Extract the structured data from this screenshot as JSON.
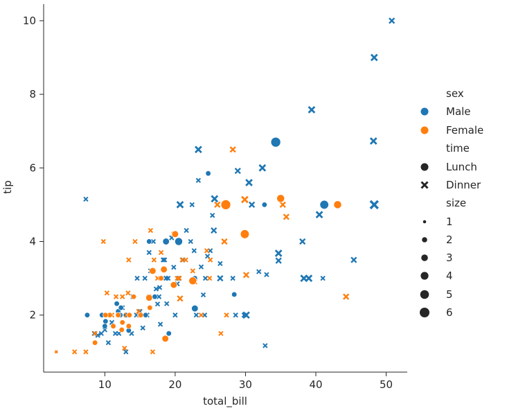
{
  "chart_data": {
    "type": "scatter",
    "title": "",
    "xlabel": "total_bill",
    "ylabel": "tip",
    "xlim": [
      1.3,
      53.0
    ],
    "ylim": [
      0.45,
      10.45
    ],
    "xticks": [
      10,
      20,
      30,
      40,
      50
    ],
    "yticks": [
      2,
      4,
      6,
      8,
      10
    ],
    "grid": false,
    "legend_position": "right",
    "colors": {
      "Male": "#1f77b4",
      "Female": "#ff7f0e"
    },
    "legend": {
      "hue_title": "sex",
      "hue_entries": [
        "Male",
        "Female"
      ],
      "style_title": "time",
      "style_entries": [
        {
          "label": "Lunch",
          "marker": "circle"
        },
        {
          "label": "Dinner",
          "marker": "x"
        }
      ],
      "size_title": "size",
      "size_entries": [
        "1",
        "2",
        "3",
        "4",
        "5",
        "6"
      ]
    },
    "series": [
      {
        "sex": "Male",
        "time": "Dinner",
        "points": [
          [
            50.8,
            10.0,
            3
          ],
          [
            48.3,
            9.0,
            4
          ],
          [
            39.4,
            7.58,
            4
          ],
          [
            48.2,
            6.73,
            4
          ],
          [
            23.3,
            6.5,
            4
          ],
          [
            32.4,
            6.0,
            4
          ],
          [
            28.9,
            5.92,
            3
          ],
          [
            30.5,
            5.6,
            4
          ],
          [
            48.3,
            5.0,
            6
          ],
          [
            20.7,
            5.0,
            4
          ],
          [
            22.4,
            5.0,
            2
          ],
          [
            30.9,
            5.0,
            3
          ],
          [
            25.6,
            5.16,
            4
          ],
          [
            23.3,
            5.66,
            2
          ],
          [
            7.3,
            5.15,
            2
          ],
          [
            34.7,
            3.68,
            4
          ],
          [
            34.7,
            3.48,
            3
          ],
          [
            40.5,
            4.73,
            4
          ],
          [
            45.4,
            3.5,
            3
          ],
          [
            38.3,
            3.0,
            4
          ],
          [
            39.0,
            3.0,
            4
          ],
          [
            41.0,
            3.0,
            2
          ],
          [
            38.1,
            4.0,
            3
          ],
          [
            30.1,
            2.0,
            4
          ],
          [
            29.8,
            2.0,
            2
          ],
          [
            32.8,
            1.17,
            2
          ],
          [
            28.2,
            3.0,
            2
          ],
          [
            28.6,
            2.0,
            2
          ],
          [
            33.0,
            3.1,
            2
          ],
          [
            31.9,
            3.18,
            2
          ],
          [
            26.4,
            3.0,
            3
          ],
          [
            26.4,
            3.4,
            2
          ],
          [
            24.6,
            3.6,
            2
          ],
          [
            24.3,
            3.0,
            2
          ],
          [
            25.0,
            3.75,
            2
          ],
          [
            25.5,
            4.3,
            3
          ],
          [
            25.3,
            4.71,
            2
          ],
          [
            23.7,
            3.31,
            2
          ],
          [
            22.8,
            3.0,
            2
          ],
          [
            21.1,
            3.5,
            2
          ],
          [
            20.5,
            3.0,
            2
          ],
          [
            19.8,
            3.3,
            2
          ],
          [
            18.7,
            3.0,
            2
          ],
          [
            18.3,
            3.5,
            2
          ],
          [
            17.8,
            2.75,
            2
          ],
          [
            17.5,
            2.3,
            2
          ],
          [
            17.3,
            2.71,
            2
          ],
          [
            16.5,
            3.2,
            2
          ],
          [
            16.0,
            2.0,
            2
          ],
          [
            15.5,
            2.0,
            2
          ],
          [
            15.0,
            2.1,
            2
          ],
          [
            14.5,
            2.0,
            2
          ],
          [
            14.0,
            2.5,
            2
          ],
          [
            13.4,
            2.0,
            2
          ],
          [
            13.0,
            2.0,
            2
          ],
          [
            12.5,
            2.2,
            2
          ],
          [
            12.0,
            1.5,
            2
          ],
          [
            11.5,
            1.5,
            2
          ],
          [
            11.0,
            1.8,
            2
          ],
          [
            10.5,
            1.25,
            2
          ],
          [
            10.0,
            1.6,
            2
          ],
          [
            9.5,
            1.5,
            2
          ],
          [
            9.0,
            1.45,
            2
          ],
          [
            8.5,
            1.5,
            2
          ],
          [
            13.0,
            1.0,
            2
          ],
          [
            14.6,
            3.0,
            2
          ],
          [
            15.7,
            3.0,
            2
          ],
          [
            16.9,
            4.0,
            2
          ],
          [
            18.5,
            3.5,
            2
          ],
          [
            19.5,
            4.1,
            2
          ],
          [
            22.2,
            4.0,
            2
          ],
          [
            21.6,
            4.3,
            2
          ],
          [
            23.0,
            2.0,
            2
          ],
          [
            24.2,
            2.0,
            2
          ],
          [
            24.0,
            2.55,
            2
          ],
          [
            20.0,
            2.0,
            2
          ],
          [
            18.8,
            2.31,
            2
          ],
          [
            17.9,
            1.75,
            2
          ],
          [
            15.4,
            1.65,
            2
          ],
          [
            13.8,
            1.5,
            2
          ],
          [
            19.0,
            3.0,
            2
          ],
          [
            20.3,
            2.85,
            2
          ],
          [
            22.7,
            3.75,
            2
          ],
          [
            16.3,
            3.7,
            2
          ],
          [
            17.7,
            2.5,
            2
          ]
        ]
      },
      {
        "sex": "Male",
        "time": "Lunch",
        "points": [
          [
            34.3,
            6.7,
            6
          ],
          [
            41.2,
            5.0,
            5
          ],
          [
            24.7,
            5.85,
            2
          ],
          [
            32.7,
            5.0,
            2
          ],
          [
            20.5,
            4.0,
            4
          ],
          [
            18.7,
            4.0,
            3
          ],
          [
            16.3,
            4.0,
            2
          ],
          [
            28.4,
            2.56,
            2
          ],
          [
            22.8,
            2.18,
            3
          ],
          [
            22.8,
            3.0,
            2
          ],
          [
            15.0,
            2.0,
            2
          ],
          [
            13.4,
            1.58,
            2
          ],
          [
            11.7,
            2.31,
            2
          ],
          [
            11.9,
            2.1,
            2
          ],
          [
            10.1,
            1.83,
            2
          ],
          [
            10.0,
            1.7,
            2
          ],
          [
            7.5,
            2.0,
            2
          ],
          [
            9.6,
            2.0,
            2
          ],
          [
            19.1,
            1.5,
            2
          ],
          [
            17.1,
            2.5,
            2
          ],
          [
            15.8,
            2.0,
            2
          ],
          [
            12.2,
            2.0,
            2
          ],
          [
            13.0,
            2.0,
            2
          ],
          [
            12.3,
            2.2,
            2
          ]
        ]
      },
      {
        "sex": "Female",
        "time": "Dinner",
        "points": [
          [
            28.2,
            6.5,
            3
          ],
          [
            35.3,
            5.0,
            3
          ],
          [
            35.8,
            4.67,
            3
          ],
          [
            29.9,
            5.14,
            4
          ],
          [
            30.1,
            3.09,
            3
          ],
          [
            27.0,
            4.0,
            3
          ],
          [
            27.3,
            2.0,
            2
          ],
          [
            26.5,
            1.5,
            2
          ],
          [
            44.3,
            2.5,
            3
          ],
          [
            25.0,
            3.5,
            2
          ],
          [
            24.9,
            3.0,
            2
          ],
          [
            21.0,
            3.5,
            2
          ],
          [
            20.7,
            2.45,
            3
          ],
          [
            20.3,
            3.0,
            2
          ],
          [
            17.5,
            3.0,
            2
          ],
          [
            17.0,
            3.5,
            2
          ],
          [
            16.5,
            4.3,
            2
          ],
          [
            16.3,
            2.5,
            2
          ],
          [
            15.0,
            2.0,
            2
          ],
          [
            14.3,
            4.0,
            2
          ],
          [
            13.4,
            3.5,
            2
          ],
          [
            13.1,
            2.0,
            2
          ],
          [
            12.5,
            2.5,
            2
          ],
          [
            11.6,
            2.5,
            2
          ],
          [
            10.3,
            2.6,
            2
          ],
          [
            9.8,
            4.0,
            2
          ],
          [
            8.6,
            1.5,
            2
          ],
          [
            7.3,
            1.0,
            2
          ],
          [
            5.7,
            1.0,
            2
          ],
          [
            3.1,
            1.0,
            1
          ],
          [
            16.8,
            1.0,
            2
          ],
          [
            18.0,
            3.7,
            2
          ],
          [
            19.8,
            4.2,
            2
          ],
          [
            22.8,
            2.9,
            2
          ],
          [
            26.0,
            5.0,
            3
          ],
          [
            11.0,
            2.0,
            2
          ],
          [
            12.8,
            1.1,
            2
          ],
          [
            13.3,
            2.6,
            2
          ],
          [
            14.8,
            2.1,
            2
          ],
          [
            20.6,
            3.0,
            2
          ],
          [
            21.5,
            3.5,
            2
          ],
          [
            22.5,
            3.2,
            2
          ],
          [
            24.5,
            3.75,
            2
          ],
          [
            23.7,
            2.0,
            2
          ]
        ]
      },
      {
        "sex": "Female",
        "time": "Lunch",
        "points": [
          [
            27.2,
            5.0,
            6
          ],
          [
            43.1,
            5.0,
            4
          ],
          [
            29.9,
            4.2,
            5
          ],
          [
            35.0,
            5.17,
            4
          ],
          [
            22.5,
            2.93,
            4
          ],
          [
            20.0,
            4.2,
            3
          ],
          [
            19.8,
            2.82,
            3
          ],
          [
            18.4,
            3.24,
            3
          ],
          [
            16.8,
            3.2,
            3
          ],
          [
            16.3,
            2.47,
            3
          ],
          [
            18.6,
            1.36,
            3
          ],
          [
            15.1,
            2.0,
            2
          ],
          [
            13.4,
            1.7,
            2
          ],
          [
            12.4,
            1.6,
            2
          ],
          [
            11.9,
            2.0,
            2
          ],
          [
            10.7,
            2.0,
            2
          ],
          [
            8.6,
            1.25,
            2
          ],
          [
            10.1,
            2.0,
            2
          ],
          [
            16.4,
            2.2,
            2
          ],
          [
            13.5,
            2.0,
            2
          ],
          [
            14.1,
            2.5,
            2
          ],
          [
            12.5,
            1.8,
            2
          ],
          [
            11.2,
            1.7,
            2
          ],
          [
            18.0,
            3.0,
            2
          ]
        ]
      }
    ]
  }
}
